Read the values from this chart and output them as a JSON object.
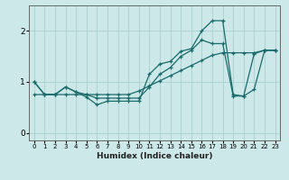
{
  "xlabel": "Humidex (Indice chaleur)",
  "bg_color": "#cce8e8",
  "grid_color": "#aacfcf",
  "line_color": "#1a6b6b",
  "xlim": [
    -0.5,
    23.5
  ],
  "ylim": [
    -0.15,
    2.5
  ],
  "xticks": [
    0,
    1,
    2,
    3,
    4,
    5,
    6,
    7,
    8,
    9,
    10,
    11,
    12,
    13,
    14,
    15,
    16,
    17,
    18,
    19,
    20,
    21,
    22,
    23
  ],
  "yticks": [
    0,
    1,
    2
  ],
  "curve1_x": [
    0,
    1,
    2,
    3,
    4,
    5,
    6,
    7,
    8,
    9,
    10,
    11,
    12,
    13,
    14,
    15,
    16,
    17,
    18,
    19,
    20,
    21,
    22,
    23
  ],
  "curve1_y": [
    1.0,
    0.75,
    0.75,
    0.9,
    0.8,
    0.7,
    0.55,
    0.62,
    0.62,
    0.62,
    0.62,
    1.15,
    1.35,
    1.4,
    1.6,
    1.65,
    2.0,
    2.2,
    2.2,
    0.75,
    0.72,
    0.85,
    1.62,
    1.62
  ],
  "curve2_x": [
    0,
    1,
    2,
    3,
    4,
    5,
    6,
    7,
    8,
    9,
    10,
    11,
    12,
    13,
    14,
    15,
    16,
    17,
    18,
    19,
    20,
    21,
    22,
    23
  ],
  "curve2_y": [
    1.0,
    0.75,
    0.75,
    0.9,
    0.8,
    0.75,
    0.68,
    0.68,
    0.68,
    0.68,
    0.68,
    0.9,
    1.15,
    1.28,
    1.5,
    1.62,
    1.82,
    1.75,
    1.75,
    0.72,
    0.72,
    1.55,
    1.62,
    1.62
  ],
  "curve3_x": [
    0,
    1,
    2,
    3,
    4,
    5,
    6,
    7,
    8,
    9,
    10,
    11,
    12,
    13,
    14,
    15,
    16,
    17,
    18,
    19,
    20,
    21,
    22,
    23
  ],
  "curve3_y": [
    0.75,
    0.75,
    0.75,
    0.75,
    0.75,
    0.75,
    0.75,
    0.75,
    0.75,
    0.75,
    0.82,
    0.92,
    1.02,
    1.12,
    1.22,
    1.32,
    1.42,
    1.52,
    1.57,
    1.57,
    1.57,
    1.57,
    1.62,
    1.62
  ]
}
